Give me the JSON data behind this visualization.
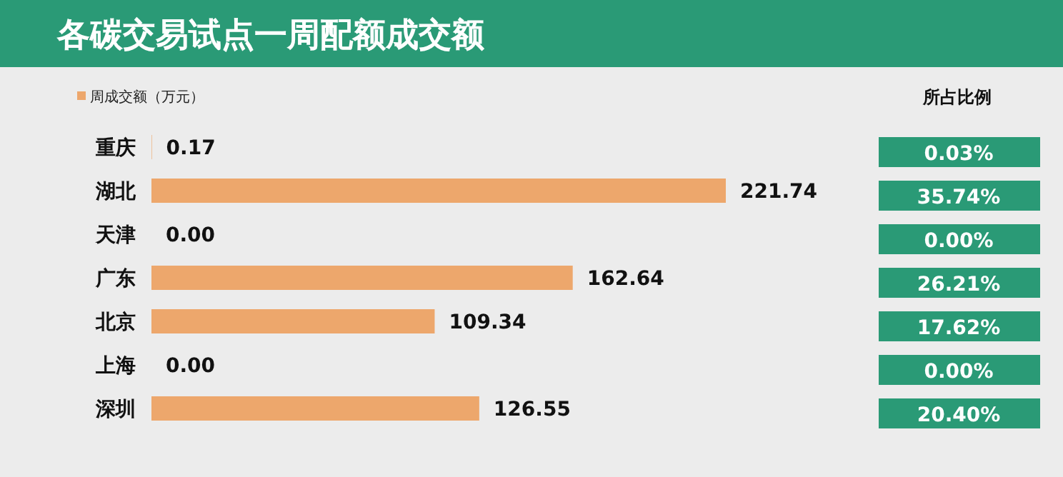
{
  "chart_data": {
    "type": "bar",
    "orientation": "horizontal",
    "title": "各碳交易试点一周配额成交额",
    "legend": "top left",
    "categories": [
      "重庆",
      "湖北",
      "天津",
      "广东",
      "北京",
      "上海",
      "深圳"
    ],
    "series": [
      {
        "name": "周成交额（万元）",
        "color": "#eda76c",
        "values": [
          0.17,
          221.74,
          0,
          162.64,
          109.34,
          0,
          126.55
        ],
        "value_labels": [
          "0.17",
          "221.74",
          "0.00",
          "162.64",
          "109.34",
          "0.00",
          "126.55"
        ]
      }
    ],
    "annotations": [
      "所占比例",
      "0.03%",
      "35.74%",
      "0.00%",
      "26.21%",
      "17.62%",
      "0.00%",
      "20.40%"
    ]
  }
}
